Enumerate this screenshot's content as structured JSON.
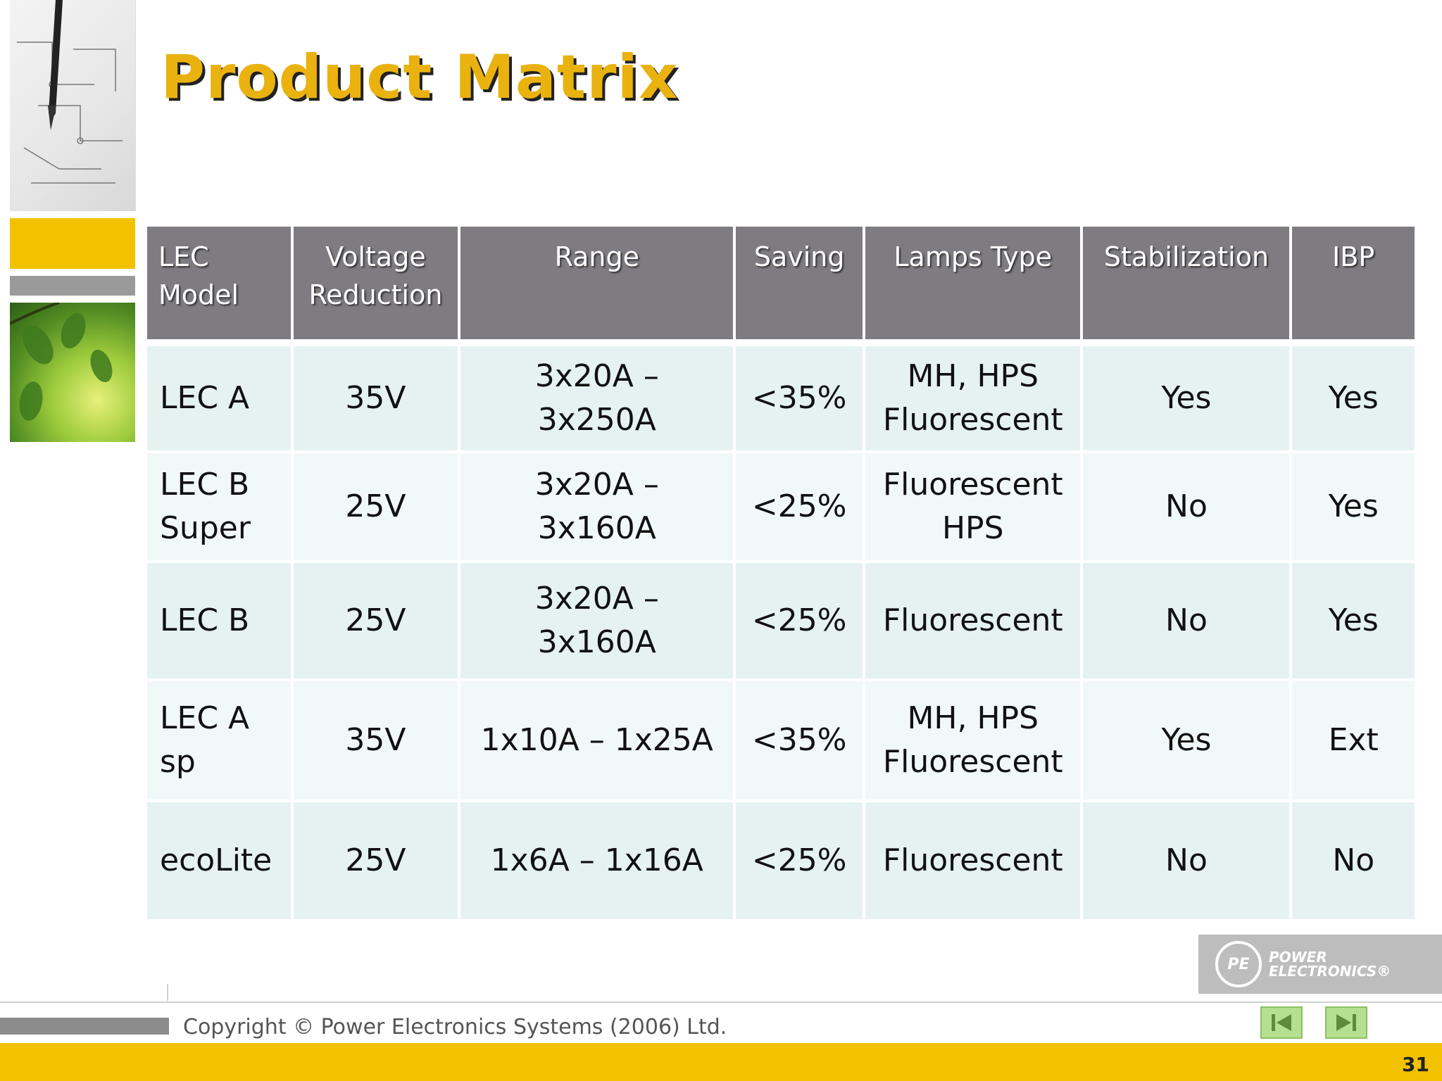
{
  "slide": {
    "title": "Product Matrix",
    "copyright": "Copyright © Power Electronics Systems (2006) Ltd.",
    "page_number": "31"
  },
  "logo": {
    "mark": "PE",
    "line1": "POWER",
    "line2": "ELECTRONICS®"
  },
  "table": {
    "headers": [
      "LEC Model",
      "Voltage Reduction",
      "Range",
      "Saving",
      "Lamps Type",
      "Stabilization",
      "IBP"
    ],
    "rows": [
      [
        "LEC A",
        "35V",
        "3x20A – 3x250A",
        "<35%",
        "MH, HPS Fluorescent",
        "Yes",
        "Yes"
      ],
      [
        "LEC B Super",
        "25V",
        "3x20A – 3x160A",
        "<25%",
        "Fluorescent HPS",
        "No",
        "Yes"
      ],
      [
        "LEC B",
        "25V",
        "3x20A – 3x160A",
        "<25%",
        "Fluorescent",
        "No",
        "Yes"
      ],
      [
        "LEC A sp",
        "35V",
        "1x10A – 1x25A",
        "<35%",
        "MH, HPS Fluorescent",
        "Yes",
        "Ext"
      ],
      [
        "ecoLite",
        "25V",
        "1x6A – 1x16A",
        "<25%",
        "Fluorescent",
        "No",
        "No"
      ]
    ]
  },
  "nav": {
    "prev_icon": "skip-back-icon",
    "next_icon": "skip-forward-icon"
  },
  "colors": {
    "accent": "#f2c200",
    "title": "#e9b20f",
    "header_bg": "#7e7c80",
    "row_bg": "#e6f2f2",
    "nav_bg": "#b5e08f"
  }
}
